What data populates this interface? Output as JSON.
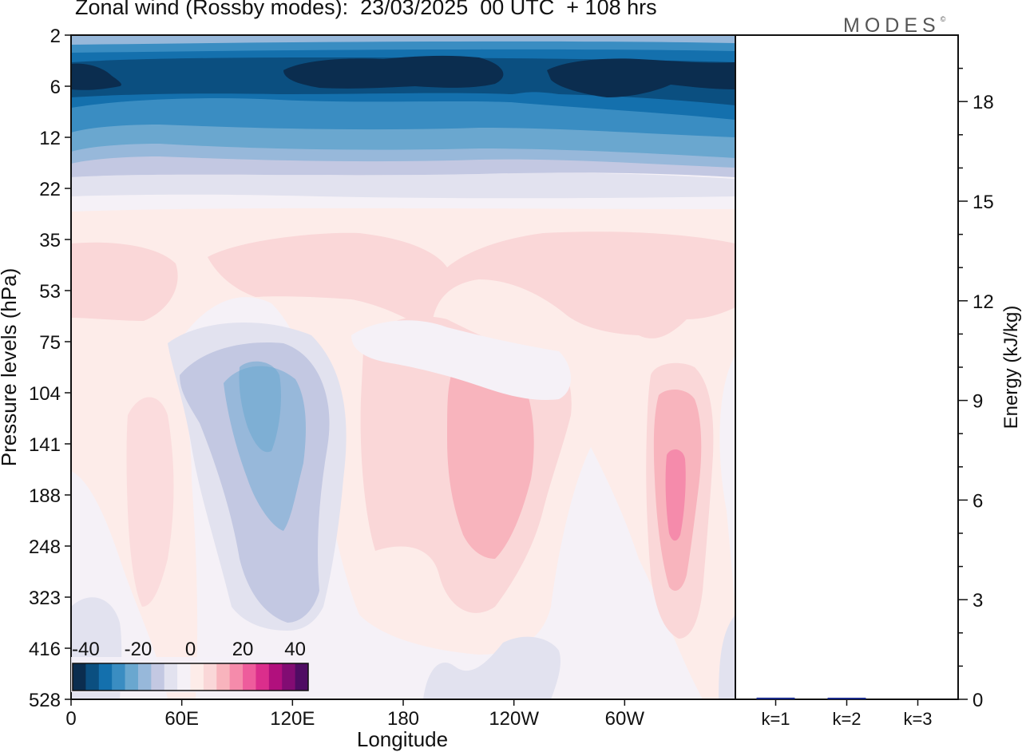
{
  "title": "Zonal wind (Rossby modes):  23/03/2025  00 UTC  + 108 hrs",
  "logo": {
    "text": "MODES",
    "mark": "©"
  },
  "chart_data": [
    {
      "type": "heatmap",
      "xlabel": "Longitude",
      "ylabel": "Pressure levels (hPa)",
      "x_ticks": [
        "0",
        "60E",
        "120E",
        "180",
        "120W",
        "60W"
      ],
      "y_ticks": [
        "2",
        "6",
        "12",
        "22",
        "35",
        "53",
        "75",
        "104",
        "141",
        "188",
        "248",
        "323",
        "416",
        "528"
      ],
      "colorbar": {
        "labels": [
          "-40",
          "-20",
          "0",
          "20",
          "40"
        ],
        "levels": [
          -45,
          -40,
          -35,
          -30,
          -25,
          -20,
          -15,
          -10,
          -5,
          0,
          5,
          10,
          15,
          20,
          25,
          30,
          35,
          40,
          45
        ],
        "colors": [
          "#0b2d4f",
          "#0b4f80",
          "#1470ad",
          "#3a8dc2",
          "#6aa7cf",
          "#97b8da",
          "#c3c8e2",
          "#e2e2ef",
          "#f5f1f7",
          "#fdece9",
          "#fad7d8",
          "#f8b4bd",
          "#f58bab",
          "#ee5c9c",
          "#db2e8c",
          "#b1107d",
          "#820c73",
          "#4f0c63"
        ]
      },
      "notes": "Zonal wind of Rossby modes: strong easterlies (below -40) near 2-12 hPa; weak westerlies (5-20) in the troposphere with maxima near 100W-160W and 30W."
    },
    {
      "type": "bar",
      "categories": [
        "k=1",
        "k=2",
        "k=3"
      ],
      "values": [
        0.05,
        0.03,
        0.0
      ],
      "ylabel": "Energy (kJ/kg)",
      "y_ticks": [
        "0",
        "3",
        "6",
        "9",
        "12",
        "15",
        "18"
      ],
      "ylim": [
        0,
        20
      ],
      "bar_color": "#1a2a8a"
    }
  ]
}
